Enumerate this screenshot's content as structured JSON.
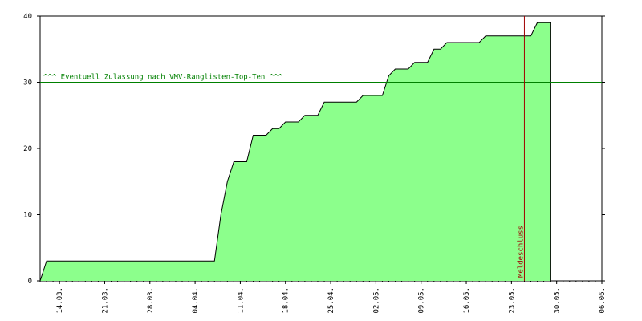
{
  "chart_data": {
    "type": "area",
    "x": [
      -3,
      -2,
      24,
      25,
      26,
      27,
      29,
      30,
      32,
      33,
      34,
      35,
      37,
      38,
      40,
      41,
      46,
      47,
      50,
      51,
      52,
      54,
      55,
      57,
      58,
      59,
      60,
      65,
      66,
      73,
      74,
      76,
      76
    ],
    "values": [
      0,
      3,
      3,
      10,
      15,
      18,
      18,
      22,
      22,
      23,
      23,
      24,
      24,
      25,
      25,
      27,
      27,
      28,
      28,
      31,
      32,
      32,
      33,
      33,
      35,
      35,
      36,
      36,
      37,
      37,
      39,
      39,
      0
    ],
    "color": "#8cff8c",
    "xlim": [
      -3,
      84
    ],
    "ylim": [
      0,
      40
    ],
    "yticks": [
      0,
      10,
      20,
      30,
      40
    ],
    "xticks": [
      {
        "value": 0,
        "label": "14.03."
      },
      {
        "value": 7,
        "label": "21.03."
      },
      {
        "value": 14,
        "label": "28.03."
      },
      {
        "value": 21,
        "label": "04.04."
      },
      {
        "value": 28,
        "label": "11.04."
      },
      {
        "value": 35,
        "label": "18.04."
      },
      {
        "value": 42,
        "label": "25.04."
      },
      {
        "value": 49,
        "label": "02.05."
      },
      {
        "value": 56,
        "label": "09.05."
      },
      {
        "value": 63,
        "label": "16.05."
      },
      {
        "value": 70,
        "label": "23.05."
      },
      {
        "value": 77,
        "label": "30.05."
      },
      {
        "value": 84,
        "label": "06.06."
      }
    ],
    "hline": {
      "value": 30,
      "label": "^^^ Eventuell Zulassung nach VMV-Ranglisten-Top-Ten ^^^",
      "color": "#008000"
    },
    "vline": {
      "value": 72,
      "label": "Meldeschluss",
      "color": "#a00000"
    }
  }
}
